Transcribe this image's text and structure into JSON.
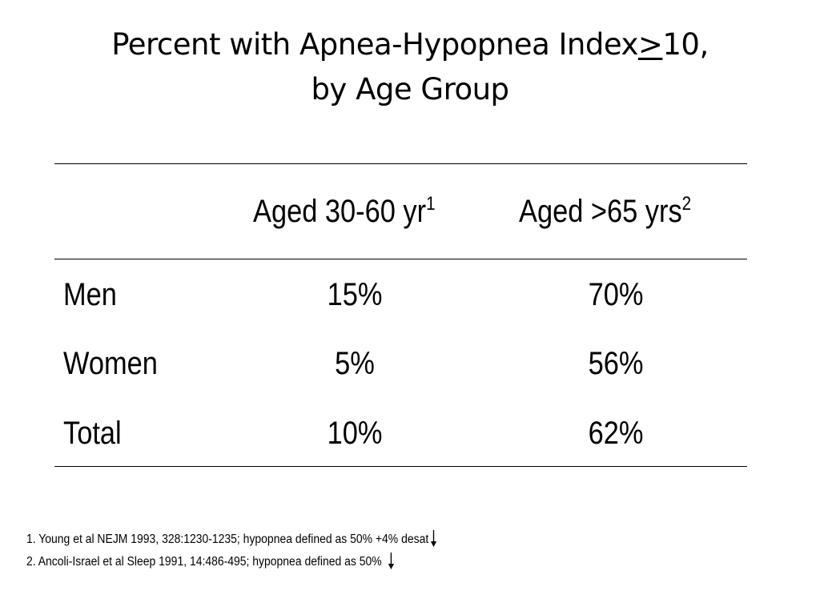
{
  "title": {
    "line1_prefix": "Percent with Apnea-Hypopnea Index",
    "line1_symbol": ">",
    "line1_suffix": "10,",
    "line2": "by Age Group"
  },
  "table": {
    "columns": [
      {
        "label": "Aged 30-60 yr",
        "footnote_ref": "1"
      },
      {
        "label": "Aged >65 yrs",
        "footnote_ref": "2"
      }
    ],
    "rows": [
      {
        "label": "Men",
        "values": [
          "15%",
          "70%"
        ]
      },
      {
        "label": "Women",
        "values": [
          "5%",
          "56%"
        ]
      },
      {
        "label": "Total",
        "values": [
          "10%",
          "62%"
        ]
      }
    ]
  },
  "footnotes": [
    {
      "text": "1. Young et al NEJM 1993, 328:1230-1235; hypopnea defined as 50%  +4% desat",
      "icon": "arrow-down-icon"
    },
    {
      "text": "2. Ancoli-Israel et al Sleep 1991, 14:486-495; hypopnea defined as 50%",
      "icon": "arrow-down-icon"
    }
  ]
}
